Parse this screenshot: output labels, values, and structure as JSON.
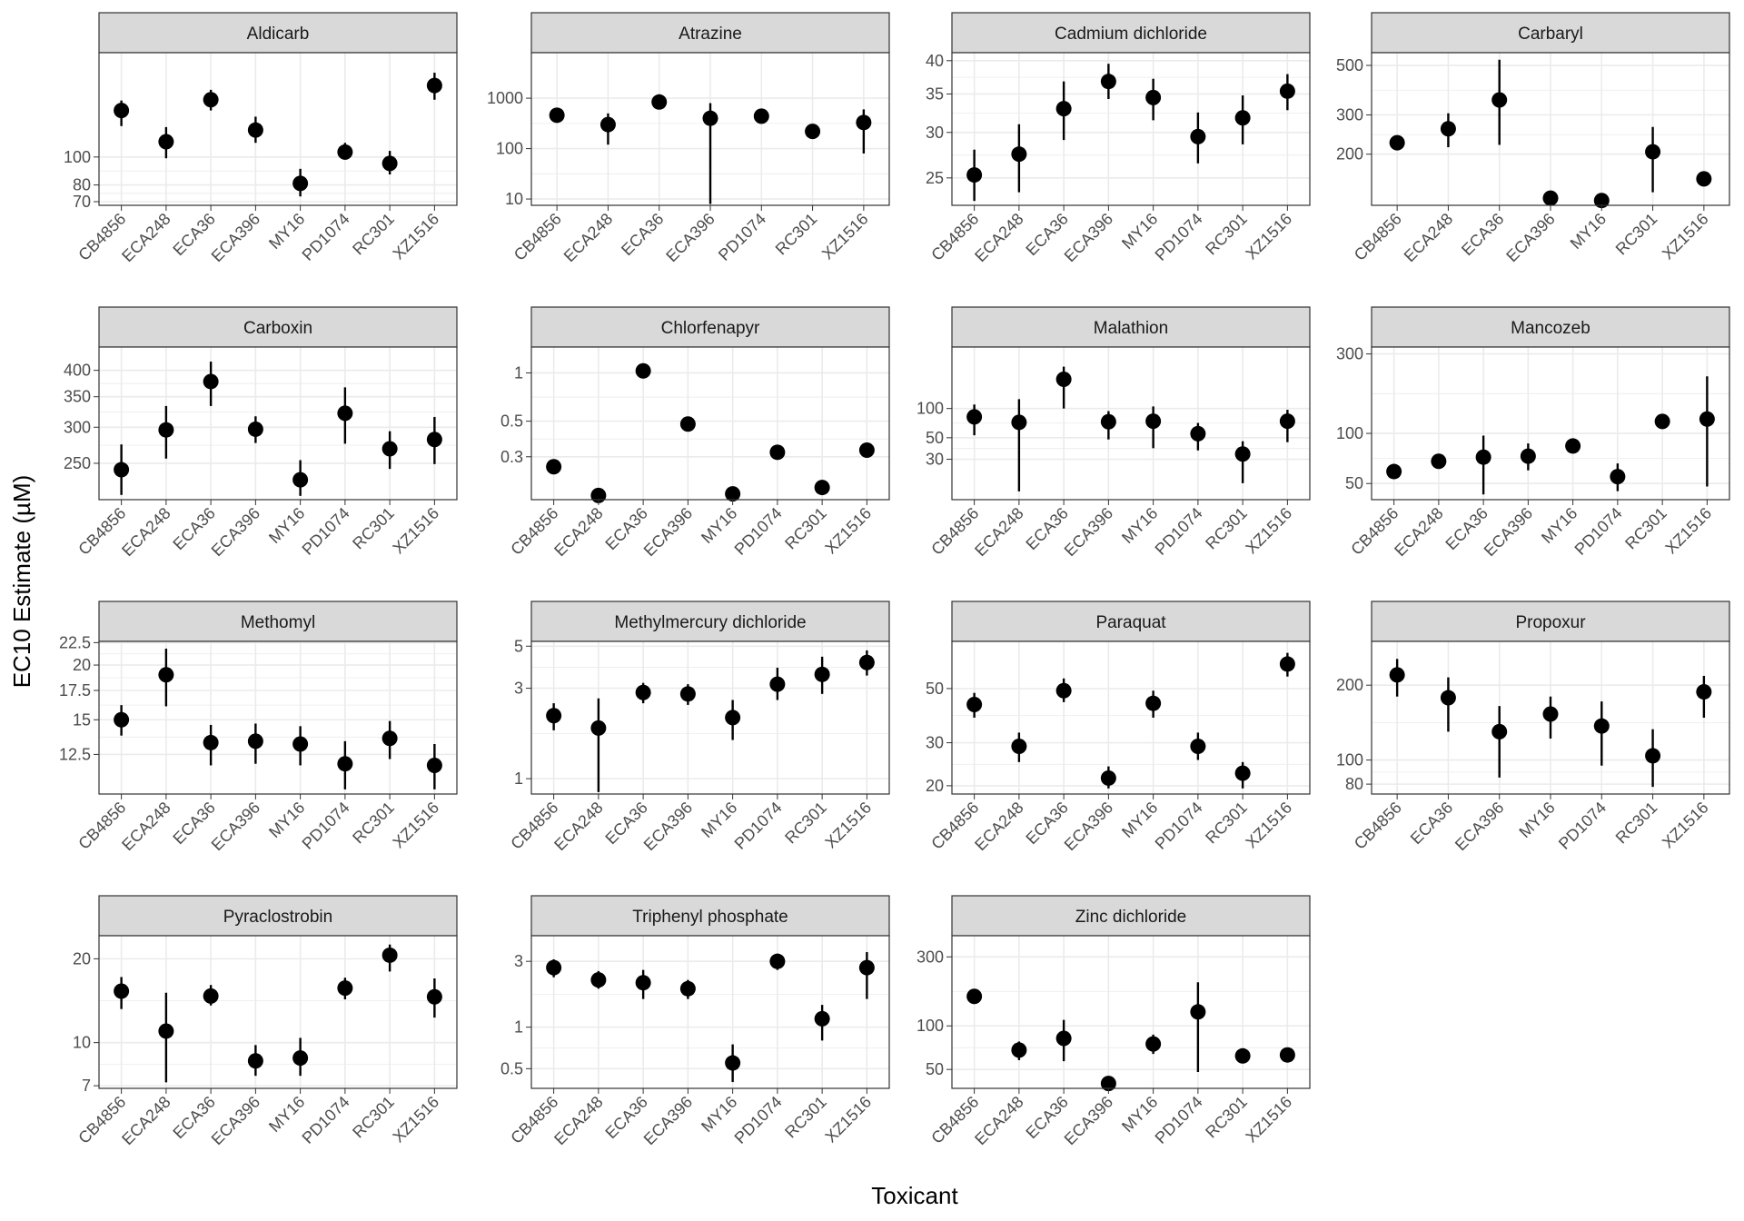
{
  "figure": {
    "ylabel": "EC10 Estimate (µM)",
    "xlabel": "Toxicant",
    "colors": {
      "strip_bg": "#d9d9d9",
      "strip_border": "#333333",
      "panel_border": "#333333",
      "grid": "#ebebeb",
      "point": "#000000",
      "tick_text": "#4d4d4d"
    }
  },
  "chart_data": [
    {
      "type": "scatter",
      "title": "Aldicarb",
      "scale": "log10",
      "categories": [
        "CB4856",
        "ECA248",
        "ECA36",
        "ECA396",
        "MY16",
        "PD1074",
        "RC301",
        "XZ1516"
      ],
      "values": [
        145,
        113,
        158,
        124,
        81,
        104,
        95,
        177
      ],
      "lower": [
        128,
        99,
        145,
        112,
        73,
        98,
        87,
        158
      ],
      "upper": [
        157,
        127,
        171,
        138,
        91,
        112,
        105,
        196
      ],
      "yticks": [
        70,
        80,
        100
      ],
      "ylim": [
        68,
        230
      ]
    },
    {
      "type": "scatter",
      "title": "Atrazine",
      "scale": "log10",
      "categories": [
        "CB4856",
        "ECA248",
        "ECA36",
        "ECA396",
        "PD1074",
        "RC301",
        "XZ1516"
      ],
      "values": [
        460,
        300,
        840,
        400,
        440,
        220,
        330
      ],
      "lower": [
        460,
        120,
        840,
        8,
        440,
        220,
        80
      ],
      "upper": [
        460,
        500,
        840,
        800,
        440,
        220,
        600
      ],
      "yticks": [
        10,
        100,
        1000
      ],
      "ylim": [
        7.5,
        8000
      ]
    },
    {
      "type": "scatter",
      "title": "Cadmium dichloride",
      "scale": "log10",
      "categories": [
        "CB4856",
        "ECA248",
        "ECA36",
        "ECA396",
        "MY16",
        "PD1074",
        "RC301",
        "XZ1516"
      ],
      "values": [
        25.3,
        27.5,
        33.0,
        36.8,
        34.5,
        29.5,
        31.8,
        35.4
      ],
      "lower": [
        22.8,
        23.6,
        29.1,
        34.3,
        31.5,
        26.5,
        28.6,
        32.8
      ],
      "upper": [
        28.0,
        31.0,
        36.8,
        39.5,
        37.2,
        32.5,
        34.8,
        37.9
      ],
      "yticks": [
        25,
        30,
        35,
        40
      ],
      "ylim": [
        22.4,
        41.3
      ]
    },
    {
      "type": "scatter",
      "title": "Carbaryl",
      "scale": "log10",
      "categories": [
        "CB4856",
        "ECA248",
        "ECA36",
        "ECA396",
        "MY16",
        "RC301",
        "XZ1516"
      ],
      "values": [
        225,
        260,
        350,
        127,
        124,
        205,
        155
      ],
      "lower": [
        225,
        215,
        220,
        127,
        124,
        135,
        155
      ],
      "upper": [
        225,
        305,
        530,
        127,
        124,
        265,
        155
      ],
      "yticks": [
        200,
        300,
        500
      ],
      "ylim": [
        118,
        570
      ]
    },
    {
      "type": "scatter",
      "title": "Carboxin",
      "scale": "log10",
      "categories": [
        "CB4856",
        "ECA248",
        "ECA36",
        "ECA396",
        "MY16",
        "PD1074",
        "RC301",
        "XZ1516"
      ],
      "values": [
        242,
        296,
        378,
        297,
        230,
        322,
        269,
        282
      ],
      "lower": [
        213,
        256,
        334,
        277,
        212,
        276,
        243,
        249
      ],
      "upper": [
        275,
        334,
        418,
        317,
        254,
        367,
        294,
        316
      ],
      "yticks": [
        250,
        300,
        350,
        400
      ],
      "ylim": [
        208,
        450
      ]
    },
    {
      "type": "scatter",
      "title": "Chlorfenapyr",
      "scale": "log10",
      "categories": [
        "CB4856",
        "ECA248",
        "ECA36",
        "ECA396",
        "MY16",
        "PD1074",
        "RC301",
        "XZ1516"
      ],
      "values": [
        0.26,
        0.172,
        1.03,
        0.48,
        0.176,
        0.32,
        0.193,
        0.33
      ],
      "lower": [
        0.26,
        0.172,
        1.03,
        0.48,
        0.176,
        0.32,
        0.193,
        0.33
      ],
      "upper": [
        0.26,
        0.172,
        1.03,
        0.48,
        0.176,
        0.32,
        0.193,
        0.33
      ],
      "yticks": [
        0.3,
        0.5,
        1.0
      ],
      "ylim": [
        0.162,
        1.45
      ]
    },
    {
      "type": "scatter",
      "title": "Malathion",
      "scale": "log10",
      "categories": [
        "CB4856",
        "ECA248",
        "ECA36",
        "ECA396",
        "MY16",
        "PD1074",
        "RC301",
        "XZ1516"
      ],
      "values": [
        82,
        72,
        200,
        73,
        74,
        55,
        34,
        74
      ],
      "lower": [
        53,
        14,
        100,
        48,
        39,
        37,
        17,
        45
      ],
      "upper": [
        110,
        125,
        270,
        94,
        105,
        71,
        46,
        97
      ],
      "yticks": [
        30,
        50,
        100
      ],
      "ylim": [
        11.5,
        430
      ]
    },
    {
      "type": "scatter",
      "title": "Mancozeb",
      "scale": "log10",
      "categories": [
        "CB4856",
        "ECA248",
        "ECA36",
        "ECA396",
        "MY16",
        "PD1074",
        "RC301",
        "XZ1516"
      ],
      "values": [
        59,
        68,
        72,
        73,
        84,
        55,
        118,
        122
      ],
      "lower": [
        59,
        68,
        43,
        60,
        84,
        45,
        118,
        48
      ],
      "upper": [
        59,
        68,
        97,
        87,
        84,
        66,
        118,
        220
      ],
      "yticks": [
        50,
        100,
        300
      ],
      "ylim": [
        40,
        330
      ]
    },
    {
      "type": "scatter",
      "title": "Methomyl",
      "scale": "log10",
      "categories": [
        "CB4856",
        "ECA248",
        "ECA36",
        "ECA396",
        "MY16",
        "PD1074",
        "RC301",
        "XZ1516"
      ],
      "values": [
        15.0,
        19.0,
        13.3,
        13.4,
        13.2,
        11.9,
        13.6,
        11.8
      ],
      "lower": [
        13.8,
        16.1,
        11.8,
        11.9,
        11.8,
        10.4,
        12.2,
        10.4
      ],
      "upper": [
        16.2,
        21.8,
        14.6,
        14.7,
        14.5,
        13.4,
        14.9,
        13.2
      ],
      "yticks": [
        12.5,
        15.0,
        17.5,
        20.0,
        22.5
      ],
      "ylim": [
        10.15,
        22.65
      ]
    },
    {
      "type": "scatter",
      "title": "Methylmercury dichloride",
      "scale": "log10",
      "categories": [
        "CB4856",
        "ECA248",
        "ECA36",
        "ECA396",
        "MY16",
        "PD1074",
        "RC301",
        "XZ1516"
      ],
      "values": [
        2.15,
        1.85,
        2.85,
        2.8,
        2.1,
        3.15,
        3.55,
        4.1
      ],
      "lower": [
        1.8,
        0.85,
        2.5,
        2.45,
        1.6,
        2.6,
        2.8,
        3.5
      ],
      "upper": [
        2.5,
        2.65,
        3.2,
        3.15,
        2.6,
        3.85,
        4.4,
        4.75
      ],
      "yticks": [
        1,
        3,
        5
      ],
      "ylim": [
        0.83,
        5.3
      ]
    },
    {
      "type": "scatter",
      "title": "Paraquat",
      "scale": "log10",
      "categories": [
        "CB4856",
        "ECA248",
        "ECA36",
        "ECA396",
        "MY16",
        "PD1074",
        "RC301",
        "XZ1516"
      ],
      "values": [
        43,
        29,
        49,
        21.5,
        43.5,
        29,
        22.5,
        63
      ],
      "lower": [
        38,
        25,
        44,
        19.5,
        38,
        25.5,
        19.5,
        56
      ],
      "upper": [
        48,
        33,
        55,
        24,
        49,
        33,
        25,
        70
      ],
      "yticks": [
        20,
        30,
        50
      ],
      "ylim": [
        18.5,
        78
      ]
    },
    {
      "type": "scatter",
      "title": "Propoxur",
      "scale": "log10",
      "categories": [
        "CB4856",
        "ECA36",
        "ECA396",
        "MY16",
        "PD1074",
        "RC301",
        "XZ1516"
      ],
      "values": [
        220,
        178,
        130,
        153,
        137,
        104,
        188
      ],
      "lower": [
        180,
        130,
        85,
        122,
        95,
        78,
        148
      ],
      "upper": [
        255,
        215,
        165,
        180,
        172,
        133,
        218
      ],
      "yticks": [
        80,
        100,
        200
      ],
      "ylim": [
        73,
        300
      ]
    },
    {
      "type": "scatter",
      "title": "Pyraclostrobin",
      "scale": "log10",
      "categories": [
        "CB4856",
        "ECA248",
        "ECA36",
        "ECA396",
        "MY16",
        "PD1074",
        "RC301",
        "XZ1516"
      ],
      "values": [
        15.3,
        11.0,
        14.7,
        8.6,
        8.8,
        15.7,
        20.6,
        14.6
      ],
      "lower": [
        13.2,
        7.2,
        13.6,
        7.6,
        7.6,
        14.3,
        18.0,
        12.3
      ],
      "upper": [
        17.2,
        15.1,
        16.1,
        9.8,
        10.4,
        17.1,
        22.5,
        17.0
      ],
      "yticks": [
        7,
        10,
        20
      ],
      "ylim": [
        6.85,
        24.2
      ]
    },
    {
      "type": "scatter",
      "title": "Triphenyl phosphate",
      "scale": "log10",
      "categories": [
        "CB4856",
        "ECA248",
        "ECA36",
        "ECA396",
        "MY16",
        "PD1074",
        "RC301",
        "XZ1516"
      ],
      "values": [
        2.7,
        2.2,
        2.1,
        1.9,
        0.55,
        3.0,
        1.15,
        2.7
      ],
      "lower": [
        2.3,
        1.9,
        1.6,
        1.6,
        0.4,
        2.6,
        0.8,
        1.6
      ],
      "upper": [
        3.1,
        2.55,
        2.6,
        2.2,
        0.75,
        3.4,
        1.45,
        3.5
      ],
      "yticks": [
        0.5,
        1.0,
        3.0
      ],
      "ylim": [
        0.36,
        4.6
      ]
    },
    {
      "type": "scatter",
      "title": "Zinc dichloride",
      "scale": "log10",
      "categories": [
        "CB4856",
        "ECA248",
        "ECA36",
        "ECA396",
        "MY16",
        "PD1074",
        "RC301",
        "XZ1516"
      ],
      "values": [
        160,
        68,
        82,
        40,
        75,
        125,
        62,
        63
      ],
      "lower": [
        160,
        58,
        57,
        40,
        64,
        48,
        62,
        63
      ],
      "upper": [
        160,
        78,
        110,
        40,
        87,
        200,
        62,
        63
      ],
      "yticks": [
        50,
        100,
        300
      ],
      "ylim": [
        37,
        420
      ]
    }
  ]
}
